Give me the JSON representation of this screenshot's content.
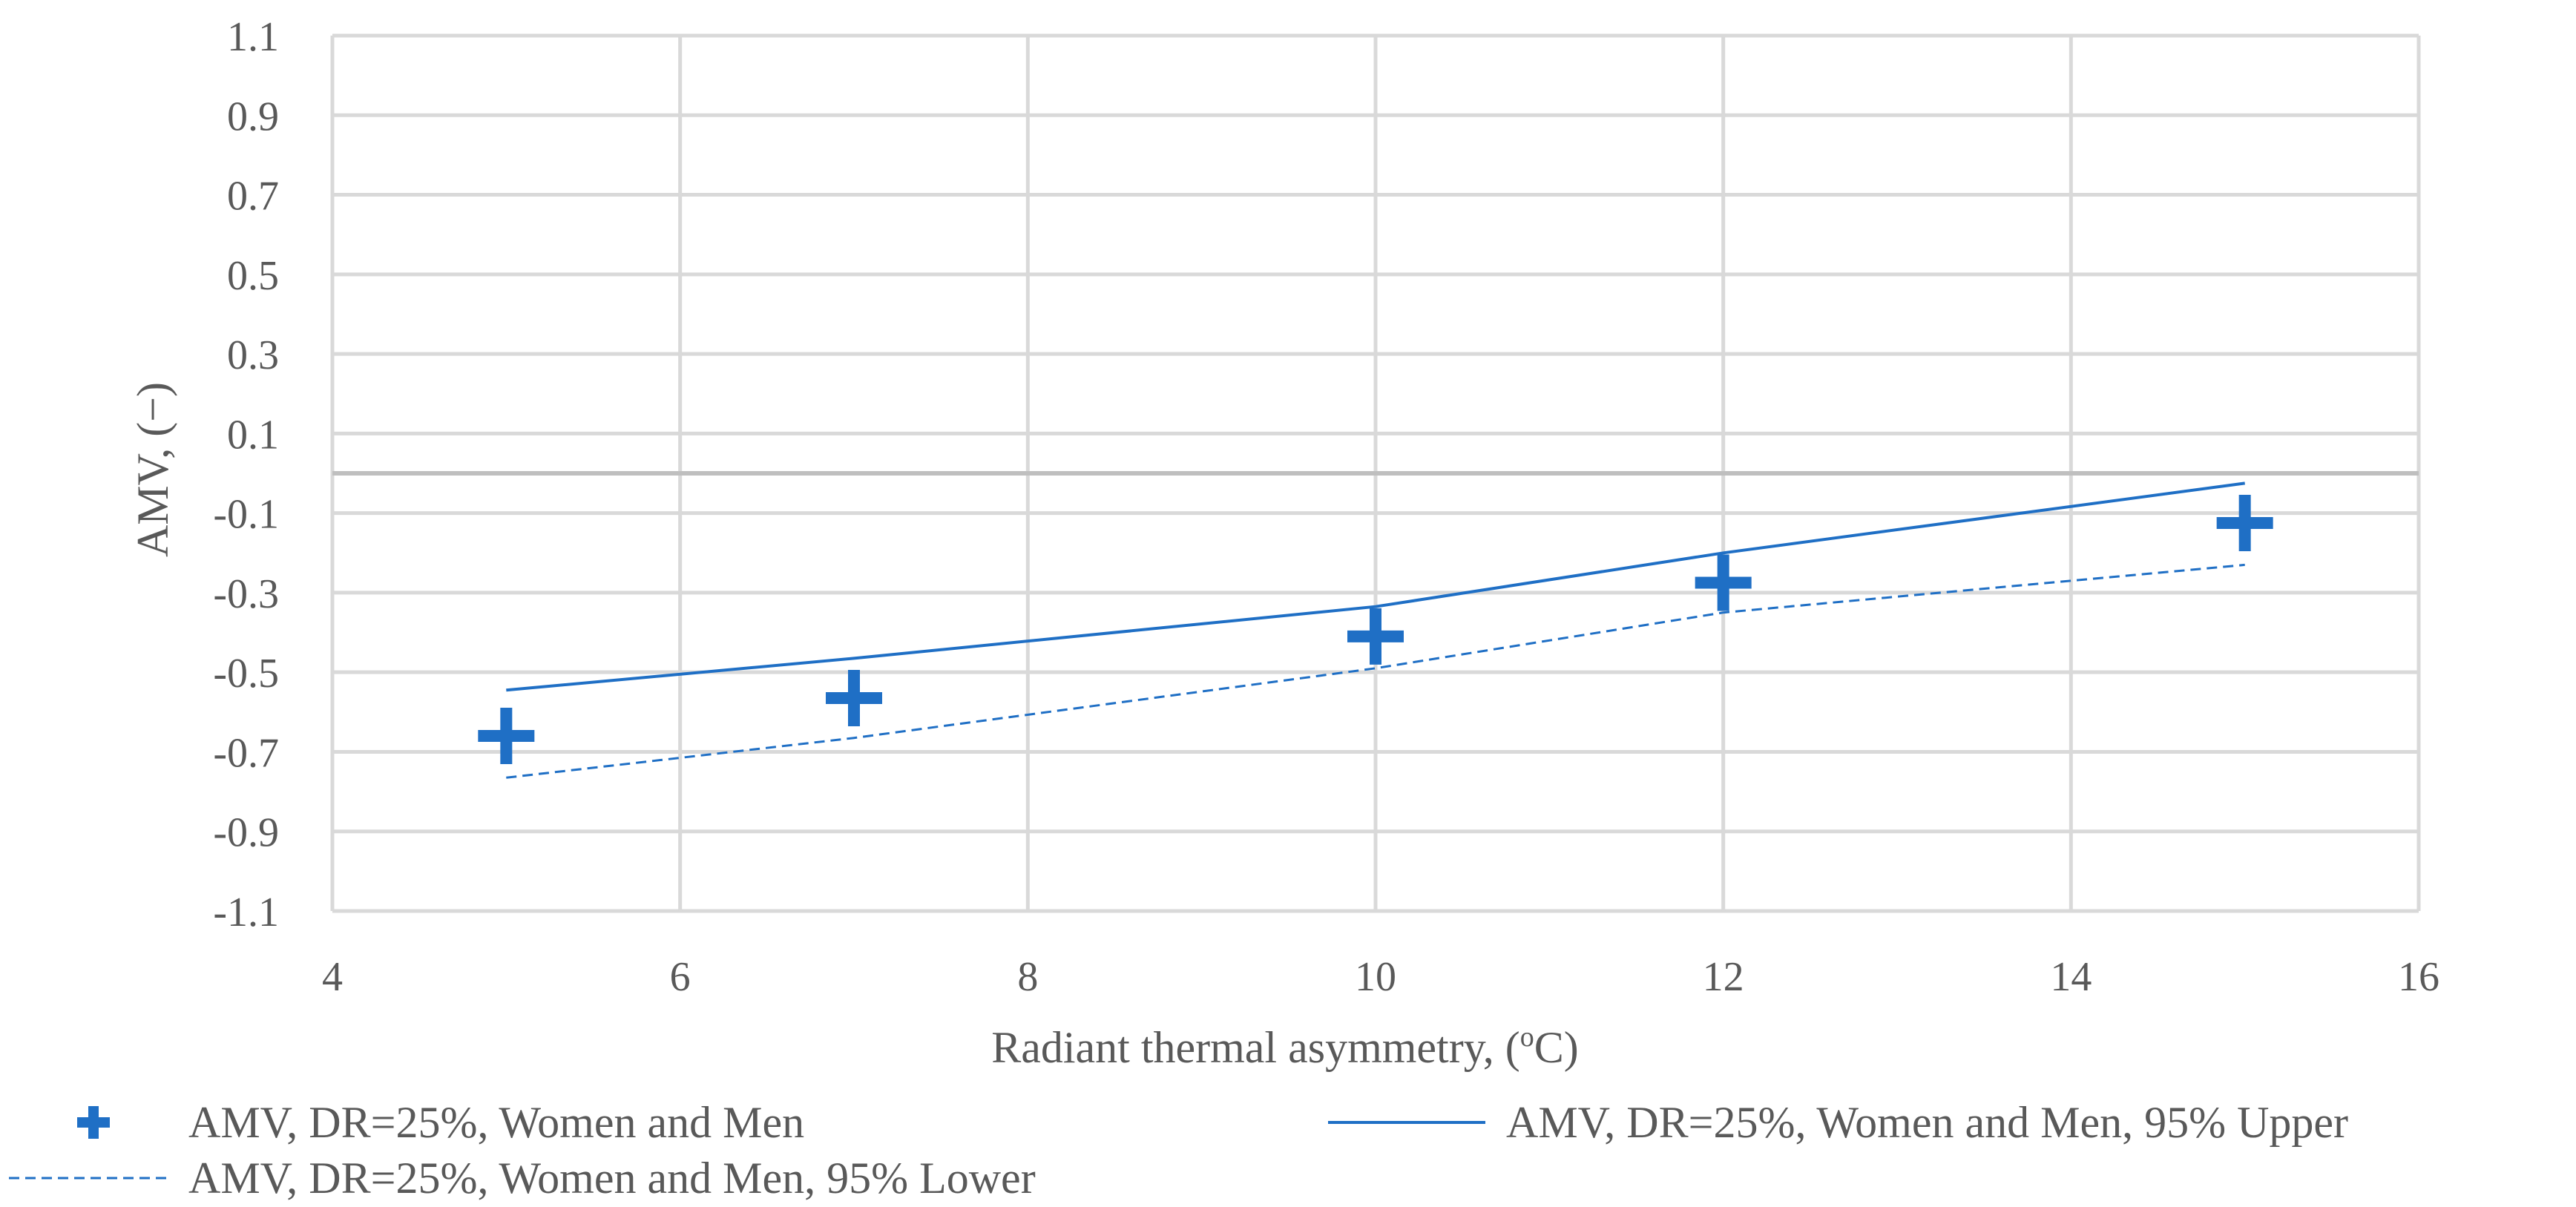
{
  "chart_data": {
    "type": "scatter",
    "title": "",
    "xlabel": "Radiant thermal asymmetry, (",
    "xlabel_sup": "o",
    "xlabel_end": "C)",
    "ylabel": "AMV, (−)",
    "xlim": [
      4,
      16
    ],
    "ylim": [
      -1.1,
      1.1
    ],
    "x_ticks": [
      4,
      6,
      8,
      10,
      12,
      14,
      16
    ],
    "y_ticks": [
      1.1,
      0.9,
      0.7,
      0.5,
      0.3,
      0.1,
      -0.1,
      -0.3,
      -0.5,
      -0.7,
      -0.9,
      -1.1
    ],
    "x_tick_labels": [
      "4",
      "6",
      "8",
      "10",
      "12",
      "14",
      "16"
    ],
    "y_tick_labels": [
      "1.1",
      "0.9",
      "0.7",
      "0.5",
      "0.3",
      "0.1",
      "-0.1",
      "-0.3",
      "-0.5",
      "-0.7",
      "-0.9",
      "-1.1"
    ],
    "grid": true,
    "zero_line": 0,
    "color": "#1f6fc5",
    "grid_color": "#d9d9d9",
    "axis_color": "#bfbfbf",
    "series": [
      {
        "name": "AMV, DR=25%, Women and Men",
        "kind": "markers",
        "marker": "plus",
        "x": [
          5,
          7,
          10,
          12,
          15
        ],
        "y": [
          -0.66,
          -0.565,
          -0.41,
          -0.275,
          -0.125
        ]
      },
      {
        "name": "AMV, DR=25%, Women and Men, 95% Upper",
        "kind": "line",
        "dash": "solid",
        "x": [
          5,
          7,
          10,
          12,
          15
        ],
        "y": [
          -0.545,
          -0.465,
          -0.335,
          -0.2,
          -0.025
        ]
      },
      {
        "name": "AMV, DR=25%, Women and Men, 95% Lower",
        "kind": "line",
        "dash": "dashed",
        "x": [
          5,
          7,
          10,
          12,
          15
        ],
        "y": [
          -0.765,
          -0.665,
          -0.49,
          -0.35,
          -0.23
        ]
      }
    ],
    "legend_position": "bottom"
  }
}
